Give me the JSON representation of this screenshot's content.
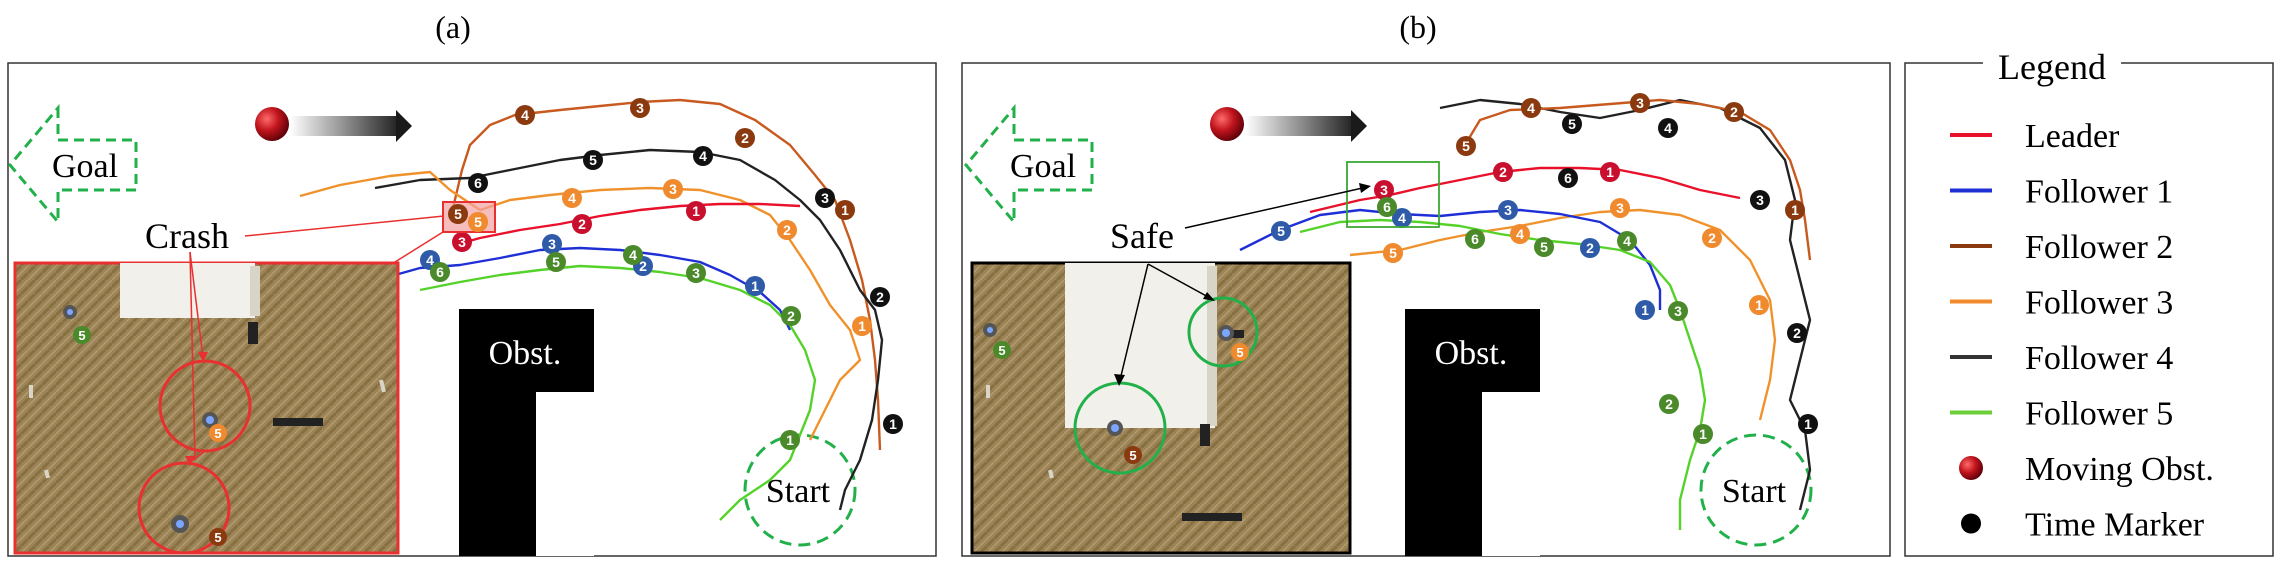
{
  "panels": [
    {
      "label": "(a)",
      "goal_text": "Goal",
      "obstacle_text": "Obst.",
      "start_text": "Start",
      "callout_text": "Crash",
      "photo_marker": "5"
    },
    {
      "label": "(b)",
      "goal_text": "Goal",
      "obstacle_text": "Obst.",
      "start_text": "Start",
      "callout_text": "Safe",
      "photo_marker": "5"
    }
  ],
  "legend": {
    "title": "Legend",
    "items": [
      {
        "label": "Leader",
        "color": "#e8102a",
        "icon": "line"
      },
      {
        "label": "Follower 1",
        "color": "#1f2fd6",
        "icon": "line"
      },
      {
        "label": "Follower 2",
        "color": "#8b3a0f",
        "icon": "line"
      },
      {
        "label": "Follower 3",
        "color": "#f08a2c",
        "icon": "line"
      },
      {
        "label": "Follower 4",
        "color": "#333333",
        "icon": "line"
      },
      {
        "label": "Follower 5",
        "color": "#6ccf3a",
        "icon": "line"
      },
      {
        "label": "Moving Obst.",
        "color": "#c0141c",
        "icon": "moving-obstacle-icon"
      },
      {
        "label": "Time Marker",
        "color": "#000000",
        "icon": "time-marker-icon"
      }
    ]
  },
  "trajectory_colors": {
    "leader": "#e8102a",
    "follower1": "#1f2fd6",
    "follower2": "#8b3a0f",
    "follower3": "#f08a2c",
    "follower4": "#222222",
    "follower5": "#55d22a"
  },
  "marker_colors": {
    "leader": "#c8102e",
    "follower1": "#2e5aa8",
    "follower2": "#8b3a0f",
    "follower3": "#ef8a2e",
    "follower4": "#111111",
    "follower5": "#4a8a2a"
  },
  "accent": {
    "goal_arrow": "#22b04a",
    "start_circle": "#22b04a",
    "crash_box": "#e83030",
    "safe_box": "#3aa832"
  }
}
